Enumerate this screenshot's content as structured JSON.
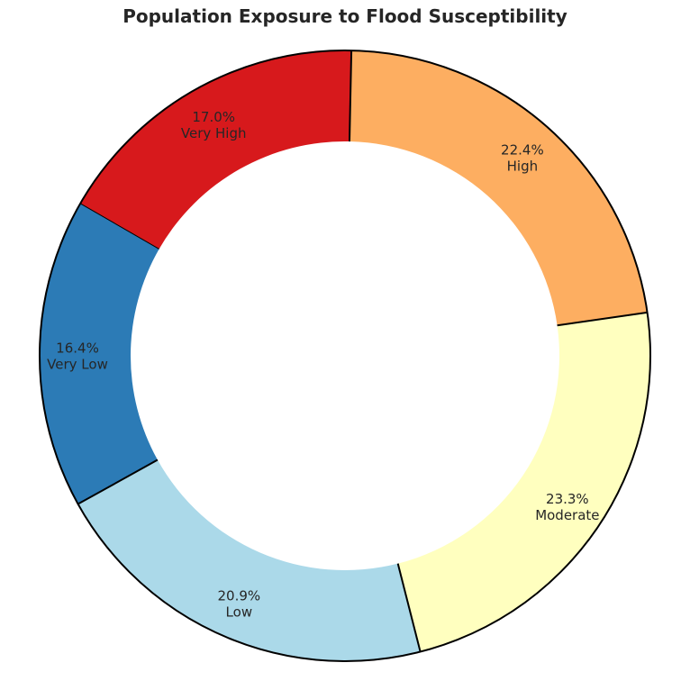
{
  "chart_data": {
    "type": "pie",
    "variant": "donut",
    "title": "Population Exposure to Flood Susceptibility",
    "slices": [
      {
        "label": "Very Low",
        "value": 16.4,
        "pct_label": "16.4%",
        "color": "#2c7bb6"
      },
      {
        "label": "Low",
        "value": 20.9,
        "pct_label": "20.9%",
        "color": "#abd9e9"
      },
      {
        "label": "Moderate",
        "value": 23.3,
        "pct_label": "23.3%",
        "color": "#ffffbf"
      },
      {
        "label": "High",
        "value": 22.4,
        "pct_label": "22.4%",
        "color": "#fdae61"
      },
      {
        "label": "Very High",
        "value": 17.0,
        "pct_label": "17.0%",
        "color": "#d7191c"
      }
    ],
    "start_angle_deg": 150,
    "direction": "counterclockwise",
    "legend": "none",
    "edge_color": "#000000"
  }
}
